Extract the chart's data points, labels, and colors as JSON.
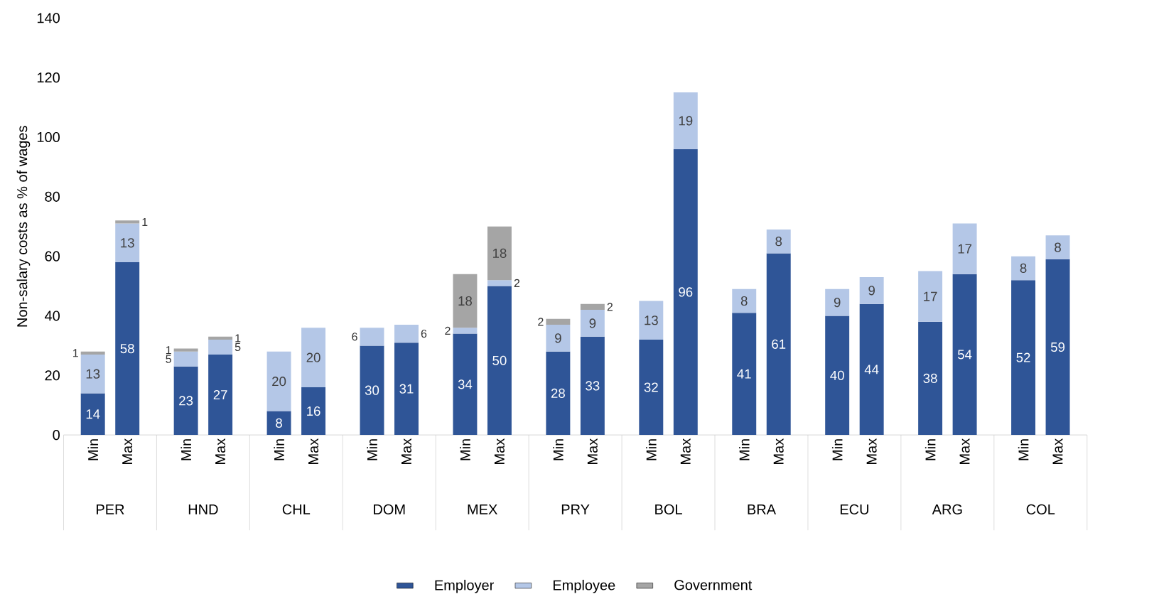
{
  "chart_data": {
    "type": "bar",
    "stacked": true,
    "ylabel": "Non-salary costs as % of wages",
    "categories": [
      "Min",
      "Max",
      "Min",
      "Max",
      "Min",
      "Max",
      "Min",
      "Max",
      "Min",
      "Max",
      "Min",
      "Max",
      "Min",
      "Max",
      "Min",
      "Max",
      "Min",
      "Max",
      "Min",
      "Max",
      "Min",
      "Max"
    ],
    "annotations": [
      "PER",
      "HND",
      "CHL",
      "DOM",
      "MEX",
      "PRY",
      "BOL",
      "BRA",
      "ECU",
      "ARG",
      "COL"
    ],
    "series": [
      {
        "name": "Employer",
        "color": "#2f5597",
        "values": [
          14,
          58,
          23,
          27,
          8,
          16,
          30,
          31,
          34,
          50,
          28,
          33,
          32,
          96,
          41,
          61,
          40,
          44,
          38,
          54,
          52,
          59
        ]
      },
      {
        "name": "Employee",
        "color": "#b4c7e7",
        "values": [
          13,
          13,
          5,
          5,
          20,
          20,
          6,
          6,
          2,
          2,
          9,
          9,
          13,
          19,
          8,
          8,
          9,
          9,
          17,
          17,
          8,
          8
        ]
      },
      {
        "name": "Government",
        "color": "#a5a5a5",
        "values": [
          1,
          1,
          1,
          1,
          null,
          null,
          null,
          null,
          18,
          18,
          2,
          2,
          null,
          null,
          null,
          null,
          null,
          null,
          null,
          null,
          null,
          null
        ]
      }
    ],
    "ylim": [
      0,
      140
    ],
    "yticks": [
      0,
      20,
      40,
      60,
      80,
      100,
      120,
      140
    ],
    "data_labels": true,
    "legend": "bottom"
  }
}
